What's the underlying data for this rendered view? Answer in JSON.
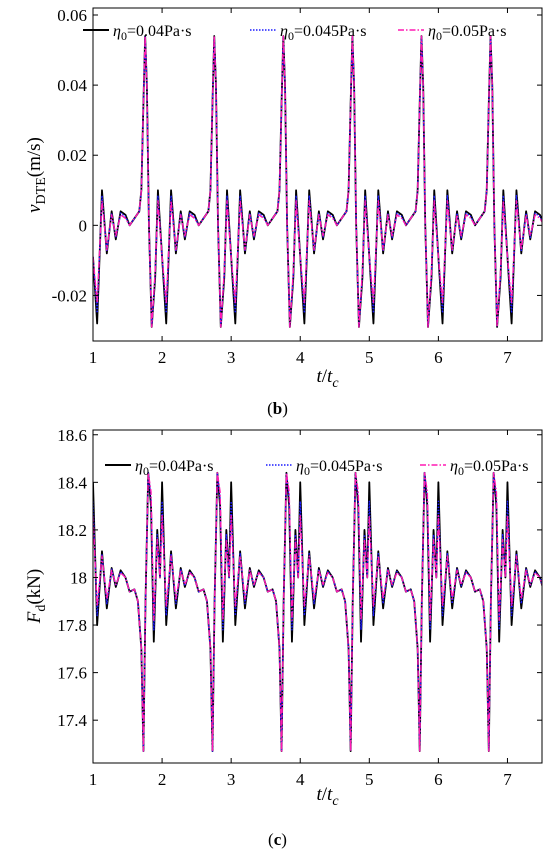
{
  "colors": {
    "axis": "#000000",
    "series_black": "#000000",
    "series_blue": "#1a1aff",
    "series_magenta": "#ff1ab3"
  },
  "chart_data": [
    {
      "type": "line",
      "panel_label": "b",
      "x_tick_labels": [
        "1",
        "2",
        "3",
        "4",
        "5",
        "6",
        "7"
      ],
      "y_tick_labels": [
        "-0.02",
        "0",
        "0.02",
        "0.04",
        "0.06"
      ],
      "xlim": [
        1,
        7.5
      ],
      "ylim": [
        -0.033,
        0.062
      ],
      "xlabel": {
        "main": "t",
        "separator": "/",
        "main2": "t",
        "sub": "c"
      },
      "ylabel": {
        "main": "v",
        "sub": "DTE",
        "unit": "(m/s)"
      },
      "legend_position": "top",
      "grid": false,
      "series": [
        {
          "name": "η0=0.04Pa·s",
          "label_main": "η",
          "label_sub": "0",
          "label_rest": "=0.04Pa·s",
          "color": "#000000",
          "dash": "solid",
          "cycle": {
            "t": [
              0.0,
              0.06,
              0.13,
              0.2,
              0.27,
              0.33,
              0.4,
              0.47,
              0.53,
              0.6,
              0.67,
              0.7,
              0.73,
              0.755,
              0.78,
              0.81,
              0.85,
              0.9,
              0.94,
              1.0
            ],
            "y": [
              -0.009,
              -0.028,
              0.01,
              -0.008,
              0.004,
              -0.004,
              0.004,
              0.003,
              0.0,
              0.002,
              0.004,
              0.01,
              0.035,
              0.054,
              0.04,
              0.0,
              -0.029,
              -0.015,
              0.01,
              -0.009
            ]
          }
        },
        {
          "name": "η0=0.045Pa·s",
          "label_main": "η",
          "label_sub": "0",
          "label_rest": "=0.045Pa·s",
          "color": "#1a1aff",
          "dash": "dotted",
          "cycle": {
            "t": [
              0.0,
              0.06,
              0.13,
              0.2,
              0.27,
              0.33,
              0.4,
              0.47,
              0.53,
              0.6,
              0.67,
              0.7,
              0.73,
              0.755,
              0.78,
              0.81,
              0.85,
              0.9,
              0.94,
              1.0
            ],
            "y": [
              -0.009,
              -0.025,
              0.0085,
              -0.0075,
              0.0035,
              -0.0035,
              0.0035,
              0.0025,
              0.0,
              0.002,
              0.004,
              0.01,
              0.035,
              0.054,
              0.04,
              0.0,
              -0.029,
              -0.014,
              0.0085,
              -0.009
            ]
          }
        },
        {
          "name": "η0=0.05Pa·s",
          "label_main": "η",
          "label_sub": "0",
          "label_rest": "=0.05Pa·s",
          "color": "#ff1ab3",
          "dash": "dashdot",
          "cycle": {
            "t": [
              0.0,
              0.06,
              0.13,
              0.2,
              0.27,
              0.33,
              0.4,
              0.47,
              0.53,
              0.6,
              0.67,
              0.7,
              0.73,
              0.755,
              0.78,
              0.81,
              0.85,
              0.9,
              0.94,
              1.0
            ],
            "y": [
              -0.009,
              -0.022,
              0.007,
              -0.007,
              0.003,
              -0.003,
              0.003,
              0.002,
              0.0,
              0.002,
              0.004,
              0.01,
              0.035,
              0.054,
              0.04,
              0.0,
              -0.029,
              -0.013,
              0.007,
              -0.009
            ]
          }
        }
      ]
    },
    {
      "type": "line",
      "panel_label": "c",
      "x_tick_labels": [
        "1",
        "2",
        "3",
        "4",
        "5",
        "6",
        "7"
      ],
      "y_tick_labels": [
        "17.4",
        "17.6",
        "17.8",
        "18",
        "18.2",
        "18.4",
        "18.6"
      ],
      "xlim": [
        1,
        7.5
      ],
      "ylim": [
        17.22,
        18.62
      ],
      "xlabel": {
        "main": "t",
        "separator": "/",
        "main2": "t",
        "sub": "c"
      },
      "ylabel": {
        "main": "F",
        "sub": "d",
        "unit": "(kN)"
      },
      "legend_position": "top",
      "grid": false,
      "series": [
        {
          "name": "η0=0.04Pa·s",
          "label_main": "η",
          "label_sub": "0",
          "label_rest": "=0.04Pa·s",
          "color": "#000000",
          "dash": "solid",
          "cycle": {
            "t": [
              0.0,
              0.06,
              0.13,
              0.2,
              0.27,
              0.33,
              0.4,
              0.47,
              0.53,
              0.6,
              0.65,
              0.7,
              0.73,
              0.76,
              0.8,
              0.84,
              0.88,
              0.93,
              0.97,
              1.0
            ],
            "y": [
              18.4,
              17.8,
              18.11,
              17.87,
              18.04,
              17.96,
              18.03,
              18.0,
              17.94,
              17.95,
              17.9,
              17.7,
              17.27,
              17.9,
              18.44,
              18.3,
              17.73,
              18.2,
              18.0,
              18.4
            ]
          }
        },
        {
          "name": "η0=0.045Pa·s",
          "label_main": "η",
          "label_sub": "0",
          "label_rest": "=0.045Pa·s",
          "color": "#1a1aff",
          "dash": "dotted",
          "cycle": {
            "t": [
              0.0,
              0.06,
              0.13,
              0.2,
              0.27,
              0.33,
              0.4,
              0.47,
              0.53,
              0.6,
              0.65,
              0.7,
              0.73,
              0.76,
              0.8,
              0.84,
              0.88,
              0.93,
              0.97,
              1.0
            ],
            "y": [
              18.32,
              17.84,
              18.1,
              17.89,
              18.035,
              17.965,
              18.025,
              18.0,
              17.94,
              17.95,
              17.9,
              17.7,
              17.27,
              17.9,
              18.44,
              18.33,
              17.78,
              18.18,
              18.0,
              18.32
            ]
          }
        },
        {
          "name": "η0=0.05Pa·s",
          "label_main": "η",
          "label_sub": "0",
          "label_rest": "=0.05Pa·s",
          "color": "#ff1ab3",
          "dash": "dashdot",
          "cycle": {
            "t": [
              0.0,
              0.06,
              0.13,
              0.2,
              0.27,
              0.33,
              0.4,
              0.47,
              0.53,
              0.6,
              0.65,
              0.7,
              0.73,
              0.76,
              0.8,
              0.84,
              0.88,
              0.93,
              0.97,
              1.0
            ],
            "y": [
              18.26,
              17.88,
              18.09,
              17.91,
              18.03,
              17.97,
              18.02,
              18.0,
              17.94,
              17.95,
              17.9,
              17.7,
              17.27,
              17.9,
              18.44,
              18.36,
              17.82,
              18.16,
              18.0,
              18.26
            ]
          }
        }
      ]
    }
  ]
}
